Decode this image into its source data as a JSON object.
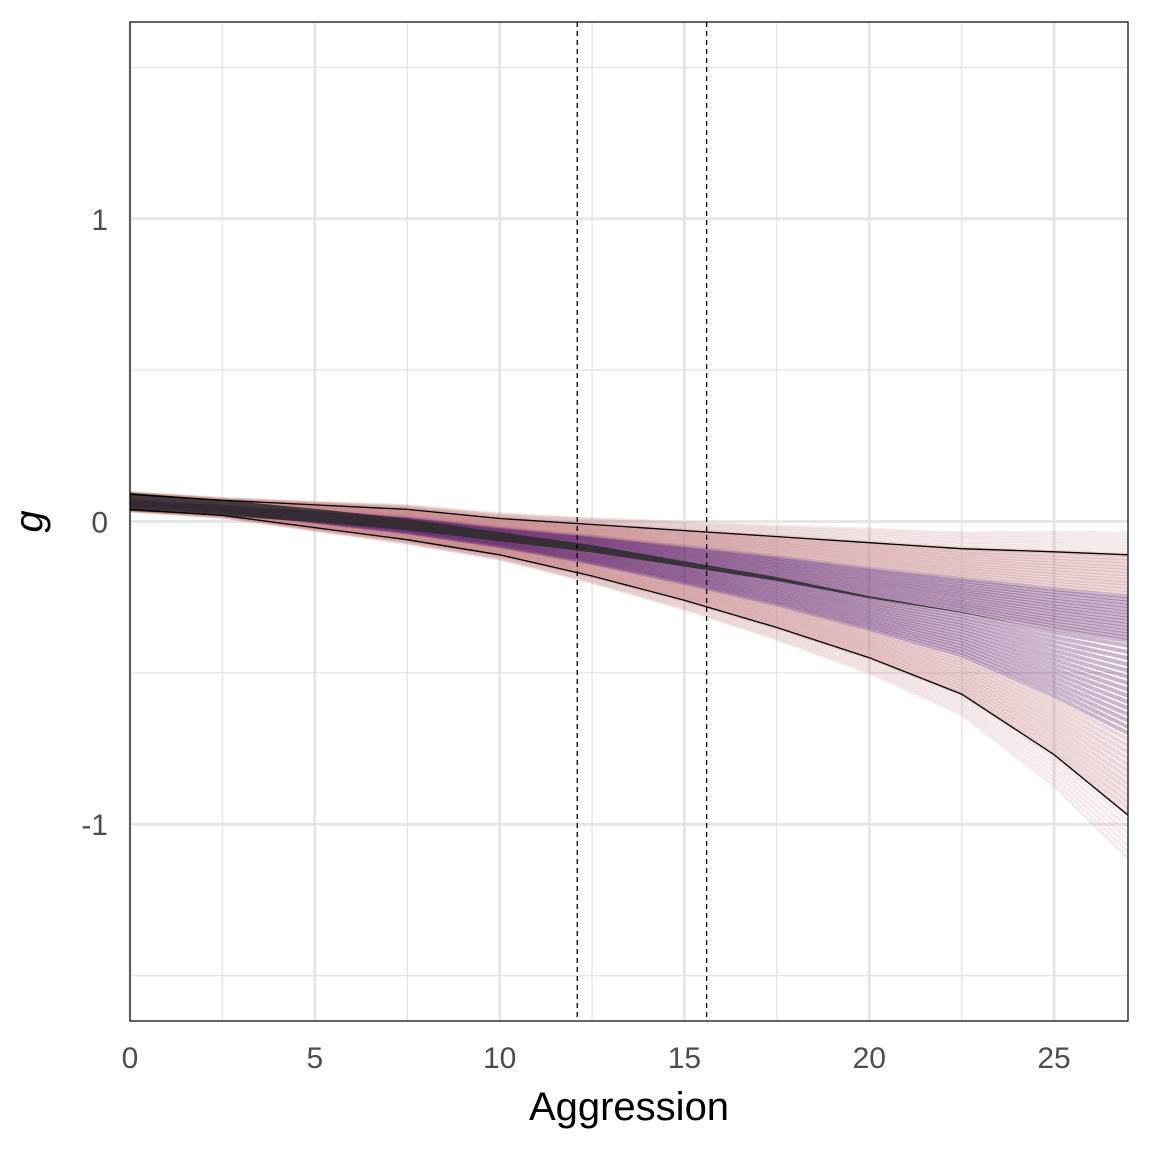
{
  "chart_data": {
    "type": "line",
    "title": "",
    "xlabel": "Aggression",
    "ylabel": "g",
    "xlim": [
      0,
      27
    ],
    "ylim": [
      -1.65,
      1.65
    ],
    "x_ticks": [
      0,
      5,
      10,
      15,
      20,
      25
    ],
    "x_tick_labels": [
      "0",
      "5",
      "10",
      "15",
      "20",
      "25"
    ],
    "y_ticks": [
      -1,
      0,
      1
    ],
    "y_tick_labels": [
      "-1",
      "0",
      "1"
    ],
    "x_minor_grid": [
      2.5,
      7.5,
      12.5,
      17.5,
      22.5
    ],
    "y_minor_grid": [
      -1.5,
      -0.5,
      0.5,
      1.5
    ],
    "grid": true,
    "vlines": [
      12.1,
      15.6
    ],
    "series": [
      {
        "name": "upper bound",
        "x": [
          0,
          2.5,
          5,
          7.5,
          10,
          12.5,
          15,
          17.5,
          20,
          22.5,
          25,
          27
        ],
        "values": [
          0.09,
          0.07,
          0.055,
          0.04,
          0.01,
          -0.01,
          -0.03,
          -0.05,
          -0.07,
          -0.09,
          -0.1,
          -0.11
        ]
      },
      {
        "name": "lower bound",
        "x": [
          0,
          2.5,
          5,
          7.5,
          10,
          12.5,
          15,
          17.5,
          20,
          22.5,
          25,
          27
        ],
        "values": [
          0.04,
          0.02,
          -0.02,
          -0.06,
          -0.11,
          -0.18,
          -0.26,
          -0.35,
          -0.45,
          -0.57,
          -0.77,
          -0.97
        ]
      },
      {
        "name": "posterior median",
        "x": [
          0,
          2.5,
          5,
          7.5,
          10,
          12.5,
          15,
          17.5,
          20,
          22.5,
          25,
          27
        ],
        "values": [
          0.065,
          0.045,
          0.02,
          -0.01,
          -0.05,
          -0.09,
          -0.14,
          -0.19,
          -0.25,
          -0.3,
          -0.36,
          -0.4
        ]
      }
    ],
    "colors": {
      "band_dark": "#2b2b2b",
      "band_purple": "#6b2a6e",
      "band_pink": "#c98a8c",
      "grid": "#e6e6e6"
    }
  }
}
